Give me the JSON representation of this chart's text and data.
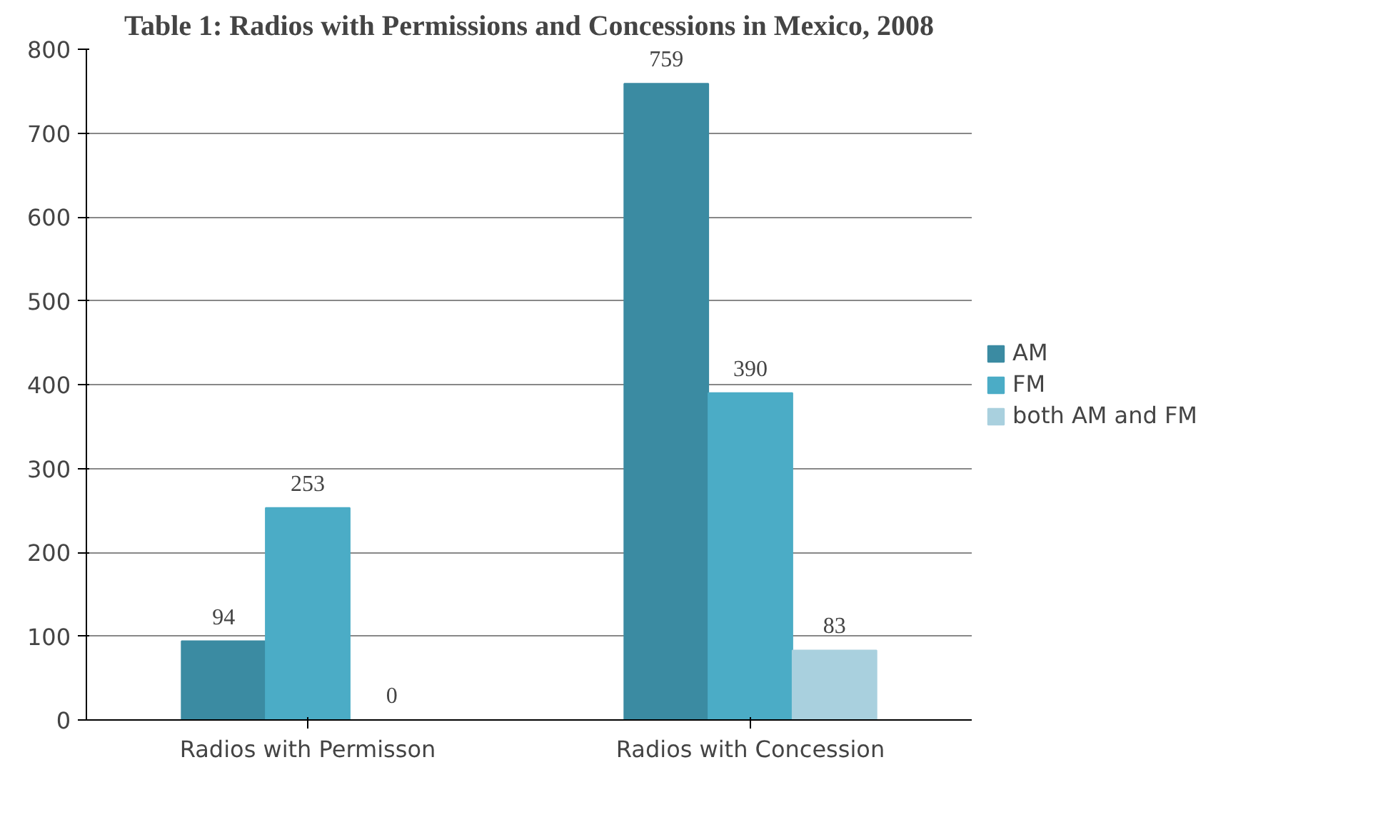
{
  "chart_data": {
    "type": "bar",
    "title": "Table 1: Radios with Permissions and Concessions in Mexico, 2008",
    "categories": [
      "Radios with Permisson",
      "Radios with Concession"
    ],
    "series": [
      {
        "name": "AM",
        "color": "#3b8ba2",
        "values": [
          94,
          759
        ]
      },
      {
        "name": "FM",
        "color": "#4bacc6",
        "values": [
          253,
          390
        ]
      },
      {
        "name": "both AM and FM",
        "color": "#a9d0de",
        "values": [
          0,
          83
        ]
      }
    ],
    "ylim": [
      0,
      800
    ],
    "yticks": [
      0,
      100,
      200,
      300,
      400,
      500,
      600,
      700,
      800
    ],
    "grid": "y",
    "legend": "right",
    "data_labels": true
  }
}
